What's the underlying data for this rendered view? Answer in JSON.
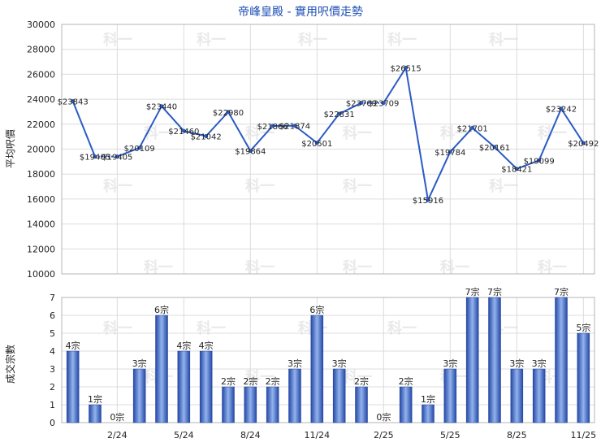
{
  "chart_data": [
    {
      "type": "line",
      "title": "帝峰皇殿 - 實用呎價走勢",
      "ylabel": "平均呎價",
      "ylim": [
        10000,
        30000
      ],
      "yticks": [
        10000,
        12000,
        14000,
        16000,
        18000,
        20000,
        22000,
        24000,
        26000,
        28000,
        30000
      ],
      "grid": true,
      "series": [
        {
          "color": "#2a5bc4",
          "values": [
            23843,
            19405,
            19405,
            20109,
            23440,
            21460,
            21042,
            22980,
            19864,
            21866,
            21874,
            20501,
            22831,
            23709,
            23709,
            26515,
            15916,
            19784,
            21701,
            20161,
            18421,
            19099,
            23242,
            20492
          ],
          "labels": [
            "$23843",
            "$19405",
            "$19405",
            "$20109",
            "$23440",
            "$21460",
            "$21042",
            "$22980",
            "$19864",
            "$21866",
            "$21874",
            "$20501",
            "$22831",
            "$23709",
            "$23709",
            "$26515",
            "$15916",
            "$19784",
            "$21701",
            "$20161",
            "$18421",
            "$19099",
            "$23242",
            "$20492"
          ],
          "carried_forward": [
            2,
            14
          ]
        }
      ]
    },
    {
      "type": "bar",
      "ylabel": "成交宗數",
      "ylim": [
        0,
        7
      ],
      "yticks": [
        0,
        1,
        2,
        3,
        4,
        5,
        6,
        7
      ],
      "xticks": [
        {
          "index": 2,
          "label": "2/24"
        },
        {
          "index": 5,
          "label": "5/24"
        },
        {
          "index": 8,
          "label": "8/24"
        },
        {
          "index": 11,
          "label": "11/24"
        },
        {
          "index": 14,
          "label": "2/25"
        },
        {
          "index": 17,
          "label": "5/25"
        },
        {
          "index": 20,
          "label": "8/25"
        },
        {
          "index": 23,
          "label": "11/25"
        }
      ],
      "grid": true,
      "series": [
        {
          "color": "#2a5bc4",
          "values": [
            4,
            1,
            0,
            3,
            6,
            4,
            4,
            2,
            2,
            2,
            3,
            6,
            3,
            2,
            0,
            2,
            1,
            3,
            7,
            7,
            3,
            3,
            7,
            5
          ],
          "labels": [
            "4宗",
            "1宗",
            "0宗",
            "3宗",
            "6宗",
            "4宗",
            "4宗",
            "2宗",
            "2宗",
            "2宗",
            "3宗",
            "6宗",
            "3宗",
            "2宗",
            "0宗",
            "2宗",
            "1宗",
            "3宗",
            "7宗",
            "7宗",
            "3宗",
            "3宗",
            "7宗",
            "5宗"
          ]
        }
      ]
    }
  ],
  "watermark": "科一"
}
